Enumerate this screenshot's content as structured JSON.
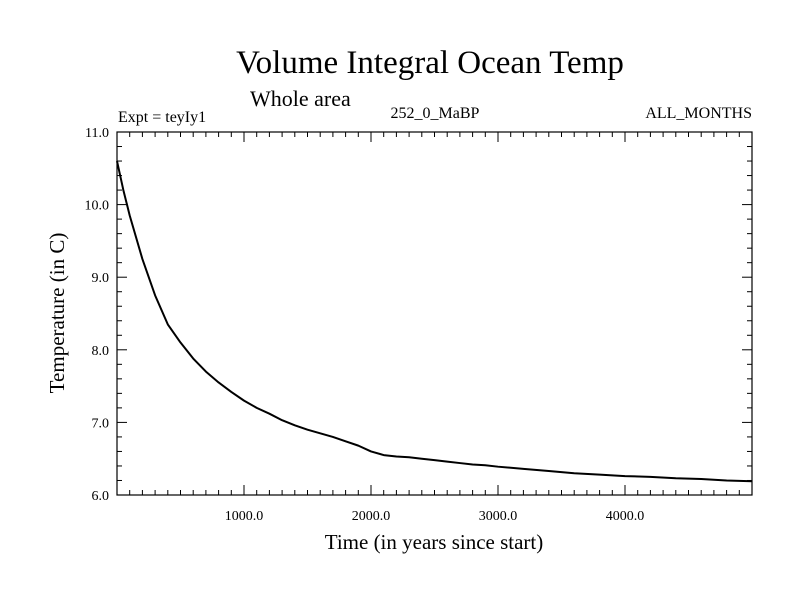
{
  "chart_data": {
    "type": "line",
    "title": "Volume Integral Ocean Temp",
    "subtitle": "Whole area",
    "annotations": {
      "left": "Expt = teyIy1",
      "center": "252_0_MaBP",
      "right": "ALL_MONTHS"
    },
    "xlabel": "Time (in years since start)",
    "ylabel": "Temperature (in C)",
    "xlim": [
      0,
      5000
    ],
    "ylim": [
      6.0,
      11.0
    ],
    "x_ticks": [
      1000,
      2000,
      3000,
      4000
    ],
    "x_tick_labels": [
      "1000.0",
      "2000.0",
      "3000.0",
      "4000.0"
    ],
    "x_minor_step": 100,
    "y_ticks": [
      6.0,
      7.0,
      8.0,
      9.0,
      10.0,
      11.0
    ],
    "y_tick_labels": [
      "6.0",
      "7.0",
      "8.0",
      "9.0",
      "10.0",
      "11.0"
    ],
    "y_minor_step": 0.2,
    "grid": false,
    "line_color": "#000000",
    "series": [
      {
        "name": "Volume Integral Ocean Temp",
        "x": [
          0,
          50,
          100,
          200,
          300,
          400,
          500,
          600,
          700,
          800,
          900,
          1000,
          1100,
          1200,
          1300,
          1400,
          1500,
          1600,
          1700,
          1800,
          1900,
          2000,
          2100,
          2200,
          2300,
          2400,
          2500,
          2600,
          2700,
          2800,
          2900,
          3000,
          3200,
          3400,
          3600,
          3800,
          4000,
          4200,
          4400,
          4600,
          4800,
          5000
        ],
        "y": [
          10.6,
          10.2,
          9.85,
          9.25,
          8.75,
          8.35,
          8.1,
          7.88,
          7.7,
          7.55,
          7.42,
          7.3,
          7.2,
          7.12,
          7.03,
          6.96,
          6.9,
          6.85,
          6.8,
          6.74,
          6.68,
          6.6,
          6.55,
          6.53,
          6.52,
          6.5,
          6.48,
          6.46,
          6.44,
          6.42,
          6.41,
          6.39,
          6.36,
          6.33,
          6.3,
          6.28,
          6.26,
          6.25,
          6.23,
          6.22,
          6.2,
          6.19
        ]
      }
    ]
  }
}
